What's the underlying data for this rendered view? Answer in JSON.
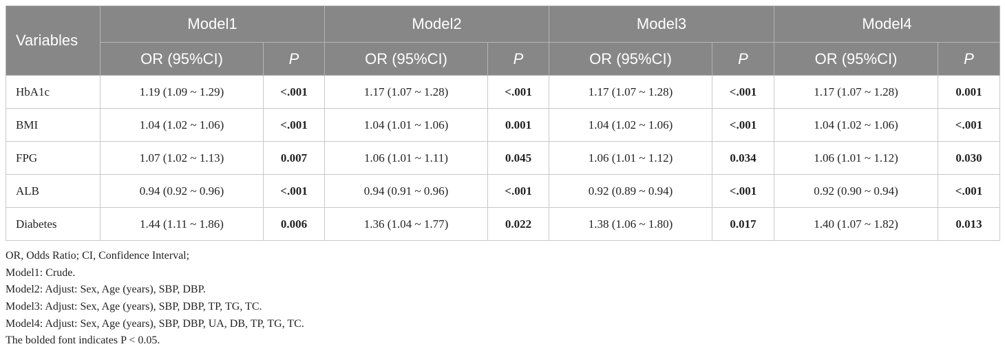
{
  "table": {
    "header": {
      "variables": "Variables",
      "models": [
        {
          "name": "Model1",
          "or": "OR (95%CI)",
          "p": "P"
        },
        {
          "name": "Model2",
          "or": "OR (95%CI)",
          "p": "P"
        },
        {
          "name": "Model3",
          "or": "OR (95%CI)",
          "p": "P"
        },
        {
          "name": "Model4",
          "or": "OR (95%CI)",
          "p": "P"
        }
      ]
    },
    "rows": [
      [
        "HbA1c",
        "1.19 (1.09 ~ 1.29)",
        "<.001",
        "1.17 (1.07 ~ 1.28)",
        "<.001",
        "1.17 (1.07 ~ 1.28)",
        "<.001",
        "1.17 (1.07 ~ 1.28)",
        "0.001"
      ],
      [
        "BMI",
        "1.04 (1.02 ~ 1.06)",
        "<.001",
        "1.04 (1.01 ~ 1.06)",
        "0.001",
        "1.04 (1.02 ~ 1.06)",
        "<.001",
        "1.04 (1.02 ~ 1.06)",
        "<.001"
      ],
      [
        "FPG",
        "1.07 (1.02 ~ 1.13)",
        "0.007",
        "1.06 (1.01 ~ 1.11)",
        "0.045",
        "1.06 (1.01 ~ 1.12)",
        "0.034",
        "1.06 (1.01 ~ 1.12)",
        "0.030"
      ],
      [
        "ALB",
        "0.94 (0.92 ~ 0.96)",
        "<.001",
        "0.94 (0.91 ~ 0.96)",
        "<.001",
        "0.92 (0.89 ~ 0.94)",
        "<.001",
        "0.92 (0.90 ~ 0.94)",
        "<.001"
      ],
      [
        "Diabetes",
        "1.44 (1.11 ~ 1.86)",
        "0.006",
        "1.36 (1.04 ~ 1.77)",
        "0.022",
        "1.38 (1.06 ~ 1.80)",
        "0.017",
        "1.40 (1.07 ~ 1.82)",
        "0.013"
      ]
    ]
  },
  "footnotes": [
    "OR, Odds Ratio; CI, Confidence Interval;",
    "Model1: Crude.",
    "Model2: Adjust: Sex, Age (years), SBP, DBP.",
    "Model3: Adjust: Sex, Age (years), SBP, DBP, TP, TG, TC.",
    "Model4: Adjust: Sex, Age (years), SBP, DBP, UA, DB, TP, TG, TC.",
    "The bolded font indicates P < 0.05."
  ]
}
